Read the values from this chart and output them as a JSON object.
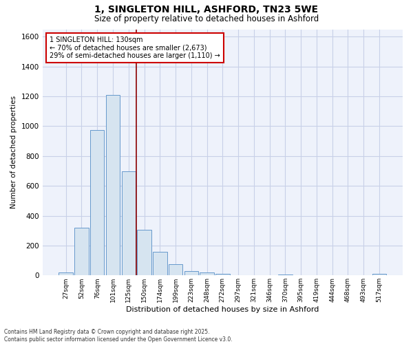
{
  "title_line1": "1, SINGLETON HILL, ASHFORD, TN23 5WE",
  "title_line2": "Size of property relative to detached houses in Ashford",
  "xlabel": "Distribution of detached houses by size in Ashford",
  "ylabel": "Number of detached properties",
  "categories": [
    "27sqm",
    "52sqm",
    "76sqm",
    "101sqm",
    "125sqm",
    "150sqm",
    "174sqm",
    "199sqm",
    "223sqm",
    "248sqm",
    "272sqm",
    "297sqm",
    "321sqm",
    "346sqm",
    "370sqm",
    "395sqm",
    "419sqm",
    "444sqm",
    "468sqm",
    "493sqm",
    "517sqm"
  ],
  "values": [
    22,
    320,
    975,
    1210,
    700,
    305,
    160,
    75,
    28,
    18,
    12,
    0,
    0,
    0,
    8,
    0,
    0,
    0,
    0,
    0,
    12
  ],
  "bar_color": "#d6e4f0",
  "bar_edge_color": "#6699cc",
  "vline_x": 4.5,
  "vline_color": "#8b0000",
  "annotation_text": "1 SINGLETON HILL: 130sqm\n← 70% of detached houses are smaller (2,673)\n29% of semi-detached houses are larger (1,110) →",
  "annotation_box_color": "white",
  "annotation_box_edge_color": "#cc0000",
  "ylim": [
    0,
    1650
  ],
  "yticks": [
    0,
    200,
    400,
    600,
    800,
    1000,
    1200,
    1400,
    1600
  ],
  "bg_color": "#ffffff",
  "plot_bg_color": "#eef2fb",
  "grid_color": "#c8d0e8",
  "footer_line1": "Contains HM Land Registry data © Crown copyright and database right 2025.",
  "footer_line2": "Contains public sector information licensed under the Open Government Licence v3.0."
}
